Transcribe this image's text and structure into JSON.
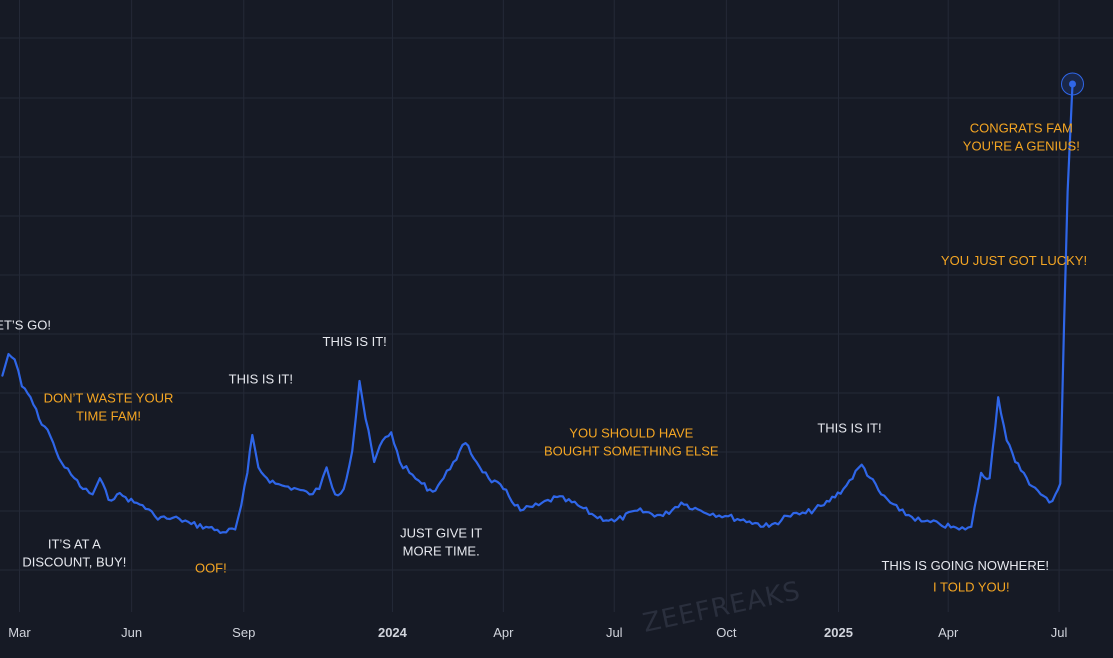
{
  "colors": {
    "background": "#161a25",
    "grid": "#242937",
    "line": "#2f66e8",
    "white_text": "#e6e8ee",
    "orange_text": "#f5a623",
    "tick_text": "#d1d4dc",
    "watermark": "#2a2f3d"
  },
  "watermark": "ZEEFREAKS",
  "chart_data": {
    "type": "line",
    "title": "",
    "xlabel": "",
    "ylabel": "",
    "grid": true,
    "legend": "none",
    "x_tick_labels": [
      {
        "label": "Mar",
        "date": "2023-03-01",
        "bold": false
      },
      {
        "label": "Jun",
        "date": "2023-06-01",
        "bold": false
      },
      {
        "label": "Sep",
        "date": "2023-09-01",
        "bold": false
      },
      {
        "label": "2024",
        "date": "2024-01-01",
        "bold": true
      },
      {
        "label": "Apr",
        "date": "2024-04-01",
        "bold": false
      },
      {
        "label": "Jul",
        "date": "2024-07-01",
        "bold": false
      },
      {
        "label": "Oct",
        "date": "2024-10-01",
        "bold": false
      },
      {
        "label": "2025",
        "date": "2025-01-01",
        "bold": true
      },
      {
        "label": "Apr",
        "date": "2025-04-01",
        "bold": false
      },
      {
        "label": "Jul",
        "date": "2025-07-01",
        "bold": false
      }
    ],
    "x_range": [
      "2023-02-13",
      "2025-07-28"
    ],
    "y_range": [
      0,
      100
    ],
    "series": [
      {
        "color": "#2f66e8",
        "points": [
          [
            "2023-02-15",
            36
          ],
          [
            "2023-02-20",
            40
          ],
          [
            "2023-02-25",
            39
          ],
          [
            "2023-03-03",
            34
          ],
          [
            "2023-03-10",
            32
          ],
          [
            "2023-03-17",
            28
          ],
          [
            "2023-03-24",
            26
          ],
          [
            "2023-03-31",
            22
          ],
          [
            "2023-04-07",
            19
          ],
          [
            "2023-04-15",
            17
          ],
          [
            "2023-04-22",
            15
          ],
          [
            "2023-04-30",
            14
          ],
          [
            "2023-05-06",
            17
          ],
          [
            "2023-05-13",
            13
          ],
          [
            "2023-05-20",
            14
          ],
          [
            "2023-05-27",
            13.5
          ],
          [
            "2023-06-03",
            12.5
          ],
          [
            "2023-06-10",
            12
          ],
          [
            "2023-06-20",
            10
          ],
          [
            "2023-06-30",
            9.5
          ],
          [
            "2023-07-10",
            9.5
          ],
          [
            "2023-07-20",
            8.5
          ],
          [
            "2023-08-01",
            8
          ],
          [
            "2023-08-15",
            7
          ],
          [
            "2023-08-25",
            7.5
          ],
          [
            "2023-08-30",
            12
          ],
          [
            "2023-09-04",
            18
          ],
          [
            "2023-09-08",
            25
          ],
          [
            "2023-09-13",
            19
          ],
          [
            "2023-09-20",
            17
          ],
          [
            "2023-09-27",
            16
          ],
          [
            "2023-10-05",
            15.5
          ],
          [
            "2023-10-15",
            15
          ],
          [
            "2023-10-25",
            14
          ],
          [
            "2023-11-02",
            15
          ],
          [
            "2023-11-08",
            19
          ],
          [
            "2023-11-15",
            14
          ],
          [
            "2023-11-22",
            15
          ],
          [
            "2023-11-29",
            22
          ],
          [
            "2023-12-05",
            35
          ],
          [
            "2023-12-10",
            28
          ],
          [
            "2023-12-17",
            20
          ],
          [
            "2023-12-24",
            24
          ],
          [
            "2023-12-31",
            25.5
          ],
          [
            "2024-01-07",
            20
          ],
          [
            "2024-01-15",
            18
          ],
          [
            "2024-01-25",
            16
          ],
          [
            "2024-02-03",
            14.5
          ],
          [
            "2024-02-12",
            17
          ],
          [
            "2024-02-20",
            20
          ],
          [
            "2024-03-01",
            23.5
          ],
          [
            "2024-03-10",
            20
          ],
          [
            "2024-03-20",
            17
          ],
          [
            "2024-04-01",
            15
          ],
          [
            "2024-04-15",
            11
          ],
          [
            "2024-04-30",
            12
          ],
          [
            "2024-05-15",
            13.5
          ],
          [
            "2024-06-01",
            12
          ],
          [
            "2024-06-15",
            10
          ],
          [
            "2024-07-01",
            9
          ],
          [
            "2024-07-20",
            11
          ],
          [
            "2024-08-10",
            10
          ],
          [
            "2024-08-25",
            12.5
          ],
          [
            "2024-09-10",
            11
          ],
          [
            "2024-09-30",
            10
          ],
          [
            "2024-10-20",
            9
          ],
          [
            "2024-11-05",
            8
          ],
          [
            "2024-11-20",
            10
          ],
          [
            "2024-12-05",
            10.5
          ],
          [
            "2024-12-20",
            12
          ],
          [
            "2025-01-05",
            15
          ],
          [
            "2025-01-20",
            19.5
          ],
          [
            "2025-02-05",
            14
          ],
          [
            "2025-02-20",
            11
          ],
          [
            "2025-03-10",
            9
          ],
          [
            "2025-03-25",
            8.5
          ],
          [
            "2025-04-10",
            7.5
          ],
          [
            "2025-04-20",
            8
          ],
          [
            "2025-04-28",
            18
          ],
          [
            "2025-05-05",
            17
          ],
          [
            "2025-05-12",
            32
          ],
          [
            "2025-05-19",
            24
          ],
          [
            "2025-05-26",
            20
          ],
          [
            "2025-06-02",
            18
          ],
          [
            "2025-06-09",
            15.5
          ],
          [
            "2025-06-16",
            14
          ],
          [
            "2025-06-23",
            12.5
          ],
          [
            "2025-06-28",
            14
          ],
          [
            "2025-07-02",
            16
          ],
          [
            "2025-07-05",
            45
          ],
          [
            "2025-07-08",
            70
          ],
          [
            "2025-07-12",
            90
          ]
        ]
      }
    ],
    "annotations": [
      {
        "lines": [
          "LET’S GO!"
        ],
        "date": "2023-03-01",
        "y": 44.5,
        "color": "white"
      },
      {
        "lines": [
          "DON’T WASTE YOUR",
          "TIME FAM!"
        ],
        "date": "2023-05-13",
        "y": 31,
        "color": "orange"
      },
      {
        "lines": [
          "IT’S AT A",
          "DISCOUNT, BUY!"
        ],
        "date": "2023-04-15",
        "y": 4,
        "color": "white"
      },
      {
        "lines": [
          "OOF!"
        ],
        "date": "2023-08-05",
        "y": -0.5,
        "color": "orange"
      },
      {
        "lines": [
          "THIS IS IT!"
        ],
        "date": "2023-09-15",
        "y": 34.5,
        "color": "white"
      },
      {
        "lines": [
          "THIS IS IT!"
        ],
        "date": "2023-12-01",
        "y": 41.5,
        "color": "white"
      },
      {
        "lines": [
          "JUST GIVE IT",
          "MORE TIME."
        ],
        "date": "2024-02-10",
        "y": 6,
        "color": "white"
      },
      {
        "lines": [
          "YOU SHOULD HAVE",
          "BOUGHT SOMETHING ELSE"
        ],
        "date": "2024-07-15",
        "y": 24.5,
        "color": "orange"
      },
      {
        "lines": [
          "THIS IS IT!"
        ],
        "date": "2025-01-10",
        "y": 25.5,
        "color": "white"
      },
      {
        "lines": [
          "THIS IS GOING NOWHERE!"
        ],
        "date": "2025-04-15",
        "y": 0,
        "color": "white"
      },
      {
        "lines": [
          "I TOLD YOU!"
        ],
        "date": "2025-04-20",
        "y": -4,
        "color": "orange"
      },
      {
        "lines": [
          "YOU JUST GOT LUCKY!"
        ],
        "date": "2025-05-25",
        "y": 56.5,
        "color": "orange"
      },
      {
        "lines": [
          "CONGRATS FAM",
          "YOU’RE A GENIUS!"
        ],
        "date": "2025-05-31",
        "y": 81,
        "color": "orange"
      }
    ]
  }
}
